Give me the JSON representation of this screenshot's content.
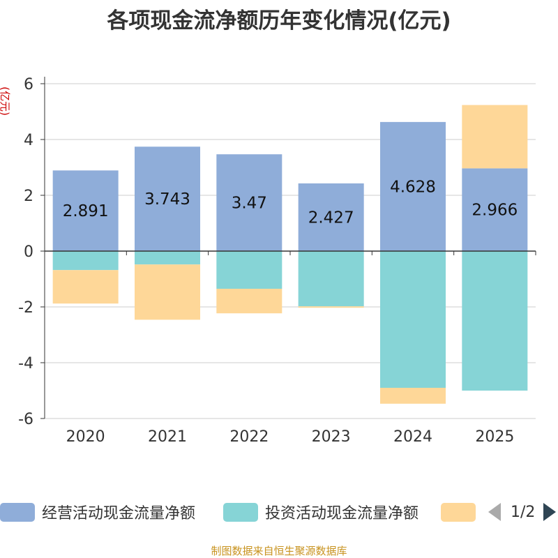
{
  "chart_data": {
    "type": "bar",
    "stacked": true,
    "title": "各项现金流净额历年变化情况(亿元)",
    "ylabel": "(亿元)",
    "xlabel": "",
    "ylim": [
      -6,
      6
    ],
    "yticks": [
      -6,
      -4,
      -2,
      0,
      2,
      4,
      6
    ],
    "grid": true,
    "categories": [
      "2020",
      "2021",
      "2022",
      "2023",
      "2024",
      "2025"
    ],
    "series": [
      {
        "name": "经营活动现金流量净额",
        "color": "#8fadd9",
        "values": [
          2.891,
          3.743,
          3.47,
          2.427,
          4.628,
          2.966
        ],
        "labels": [
          "2.891",
          "3.743",
          "3.47",
          "2.427",
          "4.628",
          "2.966"
        ]
      },
      {
        "name": "投资活动现金流量净额",
        "color": "#86d4d6",
        "values": [
          -0.68,
          -0.48,
          -1.35,
          -1.98,
          -4.9,
          -5.0
        ]
      },
      {
        "name": "",
        "color": "#fed798",
        "values": [
          -1.2,
          -1.98,
          -0.88,
          -0.05,
          -0.57,
          2.27
        ]
      }
    ],
    "legend_position": "bottom"
  },
  "legend": {
    "page_text": "1/2"
  },
  "footer": {
    "source": "制图数据来自恒生聚源数据库"
  }
}
